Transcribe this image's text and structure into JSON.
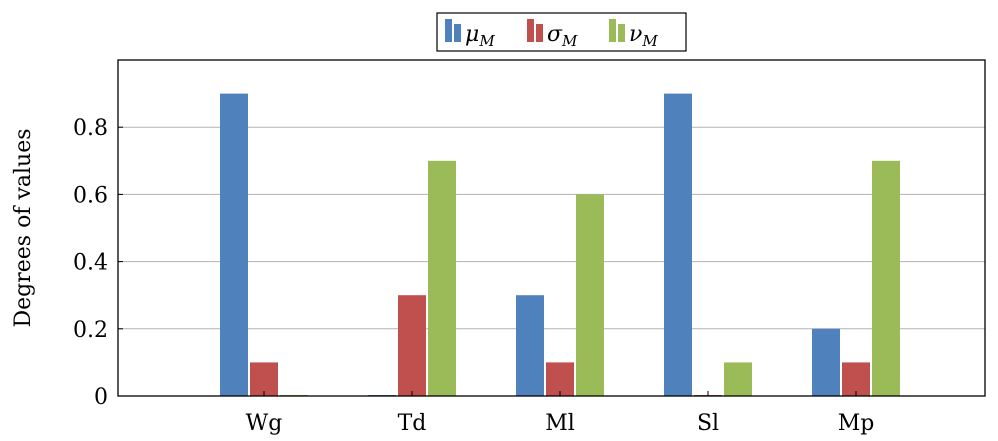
{
  "chart_data": {
    "type": "bar",
    "categories": [
      "Wg",
      "Td",
      "Ml",
      "Sl",
      "Mp"
    ],
    "series": [
      {
        "name": "μ",
        "subscript": "M",
        "color": "#4f81bd",
        "values": [
          0.9,
          0.0,
          0.3,
          0.9,
          0.2
        ]
      },
      {
        "name": "σ",
        "subscript": "M",
        "color": "#c0504d",
        "values": [
          0.1,
          0.3,
          0.1,
          0.0,
          0.1
        ]
      },
      {
        "name": "ν",
        "subscript": "M",
        "color": "#9bbb59",
        "values": [
          0.0,
          0.7,
          0.6,
          0.1,
          0.7
        ]
      }
    ],
    "ylabel": "Degrees of values",
    "xlabel": "",
    "ylim": [
      0,
      1.0
    ],
    "yticks": [
      0,
      0.2,
      0.4,
      0.6,
      0.8
    ],
    "ytick_labels": [
      "0",
      "0.2",
      "0.4",
      "0.6",
      "0.8"
    ],
    "grid": "horizontal",
    "legend_position": "top-center"
  }
}
